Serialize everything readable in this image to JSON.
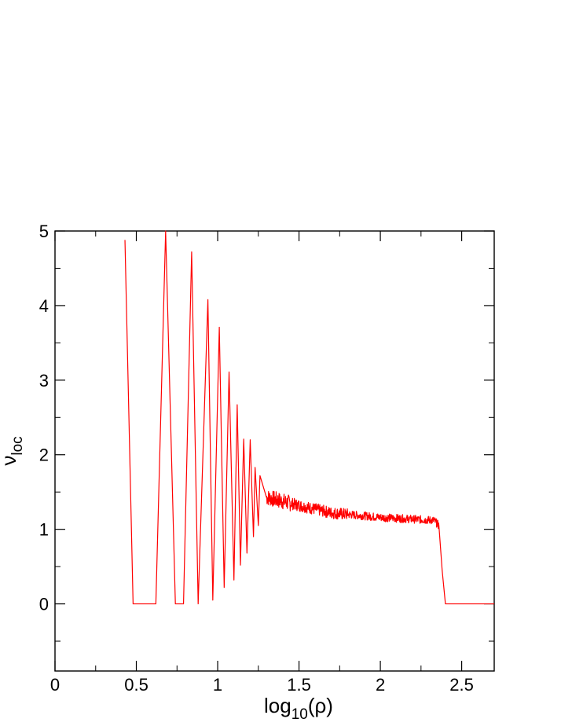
{
  "chart_data": {
    "type": "line",
    "title": "",
    "xlabel": {
      "base": "log",
      "sub": "10",
      "tail": "(ρ)"
    },
    "ylabel": {
      "base": "ν",
      "sub": "loc"
    },
    "xlim": [
      0,
      2.7
    ],
    "ylim": [
      -0.9,
      5
    ],
    "xticks": [
      0,
      0.5,
      1,
      1.5,
      2,
      2.5
    ],
    "xtick_labels": [
      "0",
      "0.5",
      "1",
      "1.5",
      "2",
      "2.5"
    ],
    "yticks": [
      0,
      1,
      2,
      3,
      4,
      5
    ],
    "ytick_labels": [
      "0",
      "1",
      "2",
      "3",
      "4",
      "5"
    ],
    "x_minor_step": 0.25,
    "y_minor_step": 0.5,
    "grid": false,
    "legend": "none",
    "series": [
      {
        "color": "#ff0000",
        "description_free": true,
        "peaks": [
          {
            "x": 0.43,
            "y": 4.88
          },
          {
            "x": 0.68,
            "y": 5.0
          },
          {
            "x": 0.84,
            "y": 4.72
          },
          {
            "x": 0.94,
            "y": 4.08
          },
          {
            "x": 1.01,
            "y": 3.71
          },
          {
            "x": 1.07,
            "y": 3.11
          },
          {
            "x": 1.12,
            "y": 2.67
          },
          {
            "x": 1.16,
            "y": 2.21
          },
          {
            "x": 1.2,
            "y": 2.2
          },
          {
            "x": 1.23,
            "y": 1.83
          },
          {
            "x": 1.26,
            "y": 1.72
          }
        ],
        "troughs": [
          {
            "x": 0.48,
            "y": 0.0
          },
          {
            "x": 0.62,
            "y": 0.0
          },
          {
            "x": 0.74,
            "y": 0.0
          },
          {
            "x": 0.79,
            "y": 0.0
          },
          {
            "x": 0.88,
            "y": 0.0
          },
          {
            "x": 0.97,
            "y": 0.05
          },
          {
            "x": 1.04,
            "y": 0.22
          },
          {
            "x": 1.1,
            "y": 0.32
          },
          {
            "x": 1.14,
            "y": 0.52
          },
          {
            "x": 1.18,
            "y": 0.68
          },
          {
            "x": 1.22,
            "y": 0.9
          },
          {
            "x": 1.25,
            "y": 1.05
          }
        ],
        "plateau": [
          {
            "x": 1.3,
            "y": 1.43
          },
          {
            "x": 1.5,
            "y": 1.32
          },
          {
            "x": 1.7,
            "y": 1.22
          },
          {
            "x": 2.0,
            "y": 1.16
          },
          {
            "x": 2.33,
            "y": 1.12
          },
          {
            "x": 2.36,
            "y": 1.05
          },
          {
            "x": 2.38,
            "y": 0.45
          },
          {
            "x": 2.4,
            "y": 0.0
          },
          {
            "x": 2.7,
            "y": 0.0
          }
        ]
      }
    ]
  }
}
